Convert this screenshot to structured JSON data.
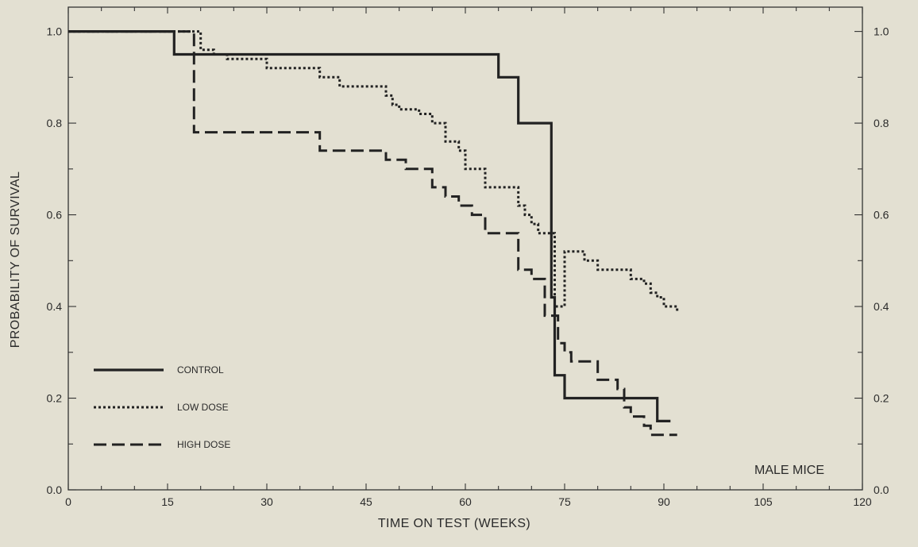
{
  "chart_data": {
    "type": "line",
    "title": "",
    "xlabel": "TIME ON TEST (WEEKS)",
    "ylabel": "PROBABILITY OF SURVIVAL",
    "xlim": [
      0,
      120
    ],
    "ylim": [
      0.0,
      1.0
    ],
    "x_ticks": [
      "0",
      "15",
      "30",
      "45",
      "60",
      "75",
      "90",
      "105",
      "120"
    ],
    "y_ticks_left": [
      "0.0",
      "0.2",
      "0.4",
      "0.6",
      "0.8",
      "1.0"
    ],
    "y_ticks_right": [
      "0.0",
      "0.2",
      "0.4",
      "0.6",
      "0.8",
      "1.0"
    ],
    "annotation": "MALE MICE",
    "step": "post",
    "legend_placement": "lower-left",
    "grid": false,
    "series": [
      {
        "name": "CONTROL",
        "style": "solid",
        "x": [
          0,
          16,
          65,
          68,
          73,
          73.5,
          75,
          89,
          91
        ],
        "y": [
          1.0,
          0.95,
          0.9,
          0.8,
          0.42,
          0.25,
          0.2,
          0.15,
          0.15
        ]
      },
      {
        "name": "LOW DOSE",
        "style": "dotted",
        "x": [
          0,
          20,
          22,
          24,
          26,
          30,
          33,
          38,
          41,
          48,
          49,
          50,
          53,
          55,
          57,
          59,
          60,
          62,
          63,
          68,
          69,
          70,
          71,
          73,
          73.5,
          75,
          78,
          80,
          85,
          87,
          88,
          89,
          90,
          92
        ],
        "y": [
          1.0,
          0.96,
          0.95,
          0.94,
          0.94,
          0.92,
          0.92,
          0.9,
          0.88,
          0.86,
          0.84,
          0.83,
          0.82,
          0.8,
          0.76,
          0.74,
          0.7,
          0.7,
          0.66,
          0.62,
          0.6,
          0.58,
          0.56,
          0.56,
          0.4,
          0.52,
          0.5,
          0.48,
          0.46,
          0.45,
          0.43,
          0.42,
          0.4,
          0.39
        ]
      },
      {
        "name": "HIGH DOSE",
        "style": "dashed",
        "x": [
          0,
          19,
          38,
          45,
          48,
          51,
          55,
          57,
          59,
          61,
          63,
          68,
          70,
          72,
          74,
          75,
          76,
          78,
          80,
          83,
          84,
          85,
          87,
          88,
          92
        ],
        "y": [
          1.0,
          0.78,
          0.74,
          0.74,
          0.72,
          0.7,
          0.66,
          0.64,
          0.62,
          0.6,
          0.56,
          0.48,
          0.46,
          0.38,
          0.32,
          0.3,
          0.28,
          0.28,
          0.24,
          0.22,
          0.18,
          0.16,
          0.14,
          0.12,
          0.12
        ]
      }
    ]
  }
}
